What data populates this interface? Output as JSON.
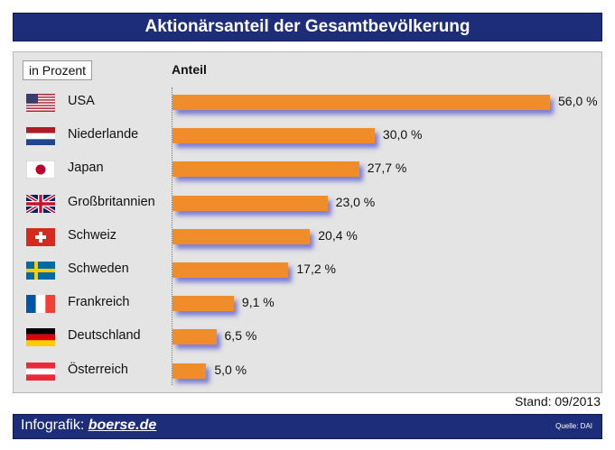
{
  "title": "Aktionärsanteil der Gesamtbevölkerung",
  "unit_label": "in Prozent",
  "column_header": "Anteil",
  "stand": "Stand: 09/2013",
  "footer": {
    "prefix": "Infografik: ",
    "brand": "boerse.de",
    "source": "Quelle: DAI"
  },
  "colors": {
    "bar": "#f08c2a",
    "title_bar": "#1d2d7a",
    "panel": "#e4e4e4"
  },
  "chart_data": {
    "type": "bar",
    "orientation": "horizontal",
    "categories": [
      "USA",
      "Niederlande",
      "Japan",
      "Großbritannien",
      "Schweiz",
      "Schweden",
      "Frankreich",
      "Deutschland",
      "Österreich"
    ],
    "values": [
      56.0,
      30.0,
      27.7,
      23.0,
      20.4,
      17.2,
      9.1,
      6.5,
      5.0
    ],
    "value_labels": [
      "56,0 %",
      "30,0 %",
      "27,7 %",
      "23,0 %",
      "20,4 %",
      "17,2 %",
      "9,1 %",
      "6,5 %",
      "5,0 %"
    ],
    "flags": [
      "usa-flag-icon",
      "netherlands-flag-icon",
      "japan-flag-icon",
      "uk-flag-icon",
      "switzerland-flag-icon",
      "sweden-flag-icon",
      "france-flag-icon",
      "germany-flag-icon",
      "austria-flag-icon"
    ],
    "title": "Aktionärsanteil der Gesamtbevölkerung",
    "xlabel": "Anteil",
    "ylabel": "",
    "xlim": [
      0,
      56
    ],
    "grid": false,
    "legend": "none"
  }
}
